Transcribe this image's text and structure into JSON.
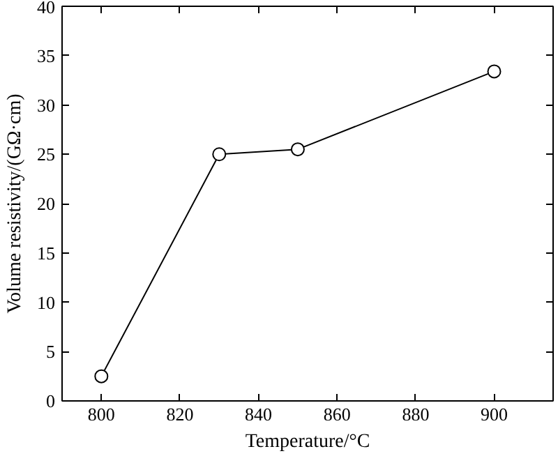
{
  "chart_data": {
    "type": "line",
    "xlabel": "Temperature/°C",
    "ylabel": "Volume resistivity/(GΩ·cm)",
    "x": [
      800,
      830,
      850,
      900
    ],
    "series": [
      {
        "color": "#000000",
        "values": [
          2.5,
          25.0,
          25.5,
          33.4
        ]
      }
    ],
    "xlim": [
      790,
      915
    ],
    "xticks": [
      800,
      820,
      840,
      860,
      880,
      900
    ],
    "ylim": [
      0,
      40
    ],
    "yticks": [
      0,
      5,
      10,
      15,
      20,
      25,
      30,
      35,
      40
    ],
    "marker": "circle",
    "line_style": "solid"
  }
}
